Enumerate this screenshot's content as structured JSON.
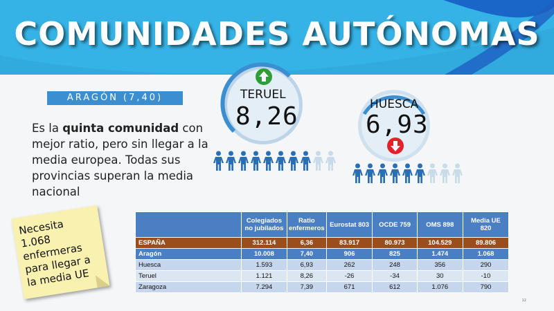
{
  "title": "COMUNIDADES AUTÓNOMAS",
  "region_badge": "ARAGÓN (7,40)",
  "description": {
    "part1": "Es la ",
    "bold": "quinta comunidad",
    "part2": " con mejor ratio, pero sin llegar a la media europea. Todas sus provincias superan la media nacional"
  },
  "teruel": {
    "name": "TERUEL",
    "value": "8,26",
    "arrow": "up-arrow-icon",
    "arrow_color": "#2e9e3a",
    "filled_people": 8,
    "total_people": 10
  },
  "huesca": {
    "name": "HUESCA",
    "value": "6,93",
    "arrow": "down-arrow-icon",
    "arrow_color": "#e0242a",
    "filled_people": 6,
    "total_people": 9
  },
  "note": "Necesita 1.068 enfermeras para llegar a la media UE",
  "table": {
    "headers": [
      "",
      "Colegiados no jubilados",
      "Ratio enfermeros",
      "Eurostat 803",
      "OCDE 759",
      "OMS 898",
      "Media UE 820"
    ],
    "rows": [
      [
        "ESPAÑA",
        "312.114",
        "6,36",
        "83.917",
        "80.973",
        "104.529",
        "89.806"
      ],
      [
        "Aragón",
        "10.008",
        "7,40",
        "906",
        "825",
        "1.474",
        "1.068"
      ],
      [
        "Huesca",
        "1.593",
        "6,93",
        "262",
        "248",
        "356",
        "290"
      ],
      [
        "Teruel",
        "1.121",
        "8,26",
        "-26",
        "-34",
        "30",
        "-10"
      ],
      [
        "Zaragoza",
        "7.294",
        "7,39",
        "671",
        "612",
        "1.076",
        "790"
      ]
    ]
  },
  "colors": {
    "header_blue": "#36b3e6",
    "person_blue": "#2a6fb5",
    "person_grey": "#c8dbe9",
    "espana_row": "#9a4d1d",
    "aragon_row": "#4a7fc3"
  },
  "page_number": "12"
}
